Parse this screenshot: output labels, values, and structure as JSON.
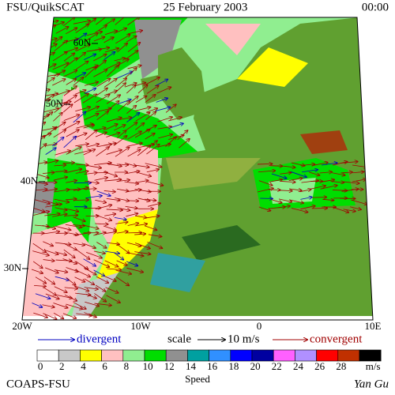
{
  "header": {
    "title": "FSU/QuikSCAT",
    "date": "25 February 2003",
    "time": "00:00"
  },
  "map": {
    "lat_labels": [
      "60N",
      "50N",
      "40N",
      "30N"
    ],
    "lon_labels": [
      "20W",
      "10W",
      "0",
      "10E"
    ]
  },
  "legend": {
    "divergent": "divergent",
    "scale": "scale",
    "scale_value": "10 m/s",
    "convergent": "convergent"
  },
  "colorbar": {
    "ticks": [
      0,
      2,
      4,
      6,
      8,
      10,
      12,
      14,
      16,
      18,
      20,
      22,
      24,
      26,
      28
    ],
    "colors": [
      "#ffffff",
      "#c8c8c8",
      "#ffff00",
      "#ffc0c0",
      "#90ee90",
      "#00dd00",
      "#909090",
      "#00a0a0",
      "#3090ff",
      "#0000ff",
      "#0000a0",
      "#ff60ff",
      "#b090ff",
      "#ff0000",
      "#c03000",
      "#000000"
    ],
    "unit": "m/s",
    "label": "Speed"
  },
  "footer": {
    "left": "COAPS-FSU",
    "right": "Yan Gu"
  }
}
